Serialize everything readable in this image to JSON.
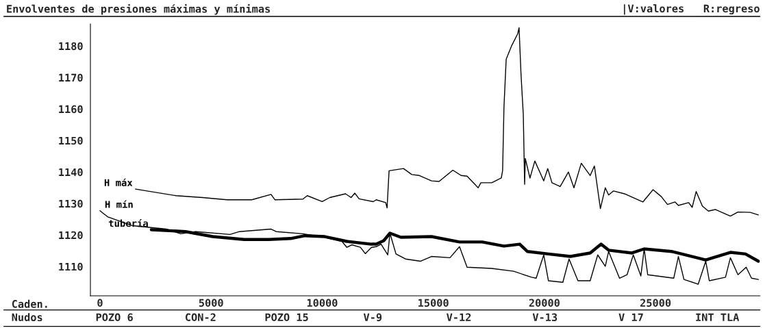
{
  "chart_data": {
    "type": "line",
    "title": "Envolventes de presiones máximas y mínimas",
    "annotations": [
      "|V:valores   R:regreso",
      "Caden.",
      "Nudos",
      "POZO 6",
      "CON-2",
      "POZO 15",
      "V-9",
      "V-12",
      "V-13",
      "V 17",
      "INT TLA"
    ],
    "xlim": [
      -430,
      29700
    ],
    "xticks": [
      0,
      5000,
      10000,
      15000,
      20000,
      25000
    ],
    "ylim": [
      1100.7,
      1187
    ],
    "yticks": [
      1110,
      1120,
      1130,
      1140,
      1150,
      1160,
      1170,
      1180
    ],
    "grid": false,
    "legend": false,
    "marker": "none",
    "line_style": "solid",
    "series": [
      {
        "name": "H máx",
        "color": "#000000",
        "x": [
          1600,
          3420,
          4620,
          5720,
          6830,
          7700,
          7870,
          9130,
          9330,
          10000,
          10340,
          11050,
          11300,
          11470,
          11660,
          12300,
          12430,
          12860,
          12920,
          13010,
          13660,
          14030,
          14370,
          14920,
          15260,
          15880,
          16250,
          16520,
          17020,
          17140,
          17630,
          18060,
          18120,
          18180,
          18280,
          18520,
          18800,
          18860,
          18950,
          19050,
          19110,
          19140,
          19350,
          19570,
          19970,
          20150,
          20340,
          20710,
          21080,
          21330,
          21660,
          22060,
          22250,
          22520,
          22740,
          22890,
          23110,
          23600,
          24430,
          24890,
          25260,
          25540,
          25880,
          26030,
          26490,
          26650,
          26830,
          27110,
          27380,
          27690,
          28370,
          28710,
          29260,
          29630
        ],
        "values": [
          1134.6,
          1132.5,
          1131.9,
          1131.2,
          1131.2,
          1132.9,
          1131.2,
          1131.4,
          1132.5,
          1130.6,
          1131.9,
          1133.1,
          1131.9,
          1133.3,
          1131.5,
          1130.6,
          1131.2,
          1130.3,
          1128.6,
          1140.4,
          1141.1,
          1139.2,
          1138.9,
          1137.2,
          1137.0,
          1140.6,
          1138.9,
          1138.7,
          1135.0,
          1136.6,
          1136.6,
          1138.1,
          1140.5,
          1160.5,
          1175.8,
          1180.0,
          1183.9,
          1185.8,
          1170.7,
          1158.3,
          1136.1,
          1144.3,
          1138.1,
          1143.5,
          1137.2,
          1141.1,
          1136.6,
          1135.4,
          1140.0,
          1135.0,
          1142.8,
          1138.9,
          1141.9,
          1128.4,
          1135.0,
          1132.7,
          1134.0,
          1133.1,
          1130.5,
          1134.4,
          1132.2,
          1129.7,
          1130.5,
          1129.4,
          1130.3,
          1128.8,
          1133.8,
          1129.2,
          1127.6,
          1128.1,
          1126.0,
          1127.3,
          1127.2,
          1126.4
        ]
      },
      {
        "name": "H mín",
        "color": "#000000",
        "x": [
          0,
          340,
          1450,
          2980,
          3630,
          4310,
          5850,
          6280,
          7700,
          7930,
          9130,
          10120,
          10890,
          11110,
          11330,
          11720,
          11940,
          12220,
          12430,
          12650,
          12950,
          13050,
          13320,
          13750,
          14430,
          14920,
          15750,
          16180,
          16520,
          17630,
          18620,
          19420,
          19630,
          19970,
          20180,
          20830,
          21110,
          21510,
          22060,
          22400,
          22740,
          22890,
          23380,
          23720,
          24000,
          24340,
          24490,
          24650,
          25820,
          26030,
          26280,
          26920,
          27260,
          27420,
          28150,
          28370,
          28710,
          29080,
          29320,
          29630
        ],
        "values": [
          1127.7,
          1125.8,
          1123.0,
          1121.9,
          1120.4,
          1121.1,
          1120.2,
          1121.1,
          1121.9,
          1121.1,
          1120.4,
          1119.3,
          1118.0,
          1116.1,
          1116.9,
          1116.1,
          1114.1,
          1116.1,
          1116.3,
          1117.1,
          1113.7,
          1120.6,
          1114.0,
          1112.4,
          1111.7,
          1113.2,
          1112.8,
          1116.3,
          1109.8,
          1109.4,
          1108.5,
          1106.6,
          1106.3,
          1113.7,
          1105.5,
          1105.0,
          1112.4,
          1105.5,
          1105.5,
          1113.7,
          1110.1,
          1114.8,
          1106.3,
          1107.4,
          1113.7,
          1107.0,
          1115.6,
          1107.4,
          1106.3,
          1113.2,
          1105.9,
          1104.4,
          1111.7,
          1105.5,
          1106.6,
          1112.8,
          1107.4,
          1109.8,
          1106.3,
          1105.9
        ]
      },
      {
        "name": "tubería",
        "color": "#000000",
        "x": [
          2310,
          3850,
          5080,
          6490,
          7600,
          8580,
          9230,
          10120,
          11110,
          12220,
          12430,
          12770,
          13050,
          13540,
          14920,
          16180,
          17200,
          18180,
          18890,
          19230,
          20180,
          21170,
          22060,
          22550,
          22890,
          23940,
          24490,
          25720,
          27260,
          28370,
          29050,
          29630
        ],
        "values": [
          1121.7,
          1121.1,
          1119.5,
          1118.6,
          1118.6,
          1118.9,
          1119.8,
          1119.5,
          1118.0,
          1117.1,
          1117.1,
          1118.2,
          1120.6,
          1119.3,
          1119.5,
          1117.8,
          1117.8,
          1116.5,
          1117.1,
          1114.8,
          1114.0,
          1113.2,
          1114.3,
          1117.1,
          1115.2,
          1114.3,
          1115.6,
          1114.8,
          1112.1,
          1114.5,
          1114.0,
          1111.7
        ]
      }
    ]
  }
}
